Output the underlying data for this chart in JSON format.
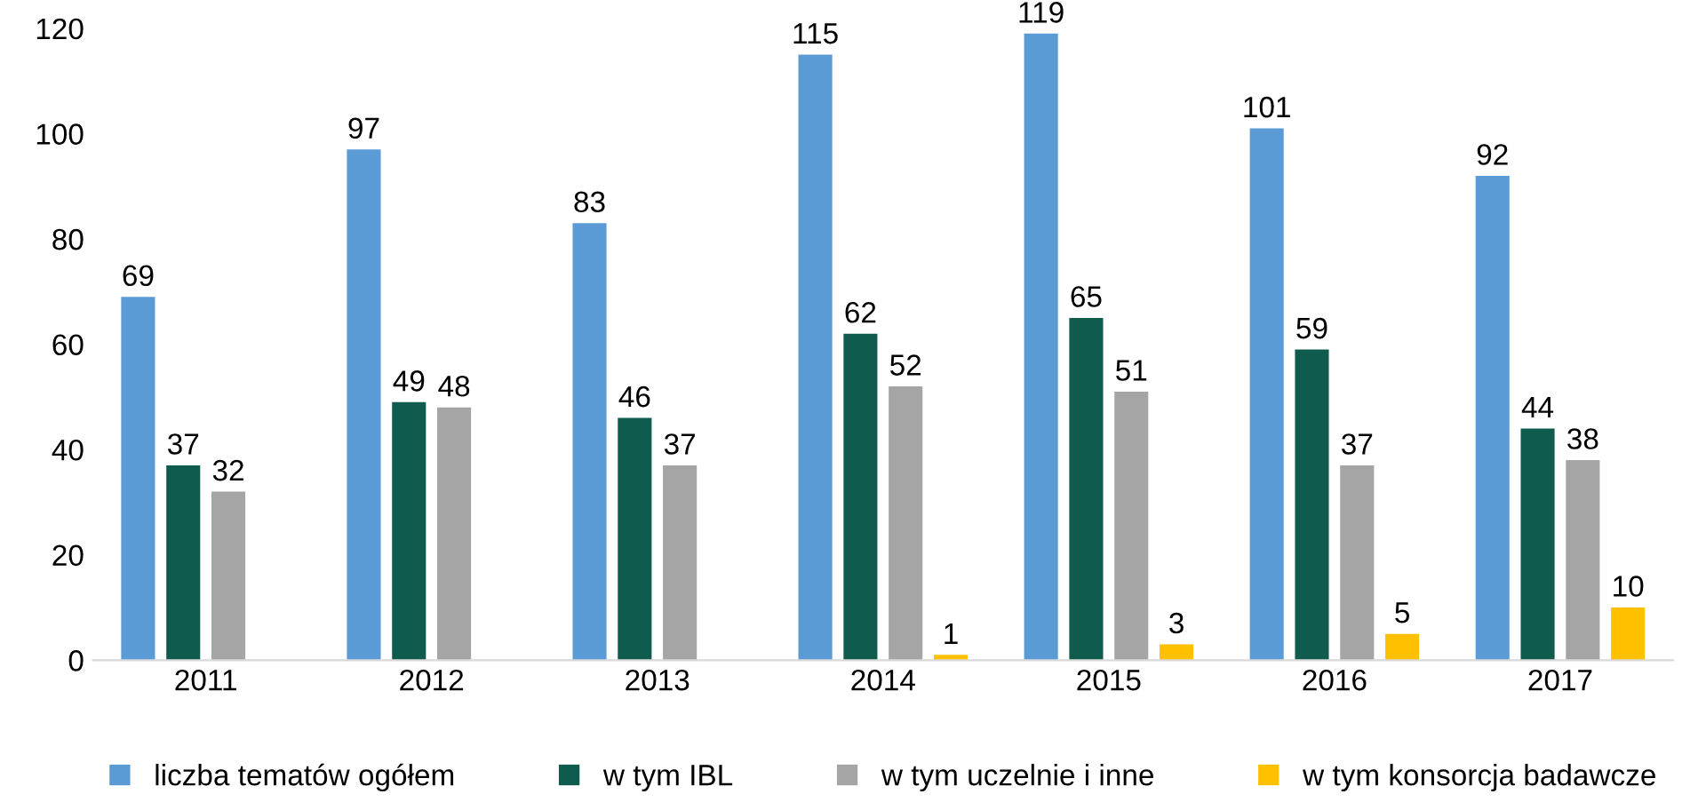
{
  "chart_data": {
    "type": "bar",
    "categories": [
      "2011",
      "2012",
      "2013",
      "2014",
      "2015",
      "2016",
      "2017"
    ],
    "series": [
      {
        "name": "liczba tematów ogółem",
        "color": "#5b9bd5",
        "values": [
          69,
          97,
          83,
          115,
          119,
          101,
          92
        ]
      },
      {
        "name": "w tym IBL",
        "color": "#0f5c4e",
        "values": [
          37,
          49,
          46,
          62,
          65,
          59,
          44
        ]
      },
      {
        "name": "w tym uczelnie i inne",
        "color": "#a5a5a5",
        "values": [
          32,
          48,
          37,
          52,
          51,
          37,
          38
        ]
      },
      {
        "name": "w tym konsorcja badawcze",
        "color": "#ffc000",
        "values": [
          null,
          null,
          null,
          1,
          3,
          5,
          10
        ]
      }
    ],
    "ylim": [
      0,
      120
    ],
    "yticks": [
      0,
      20,
      40,
      60,
      80,
      100,
      120
    ],
    "grid": false,
    "legend": "bottom",
    "data_labels": true
  }
}
